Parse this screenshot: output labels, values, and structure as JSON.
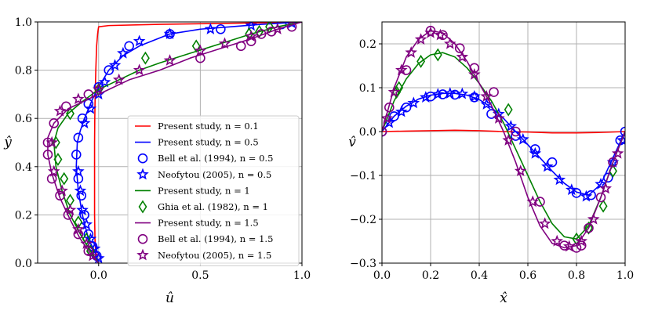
{
  "chart_data": [
    {
      "type": "line",
      "xlabel": "û",
      "ylabel": "ŷ",
      "xlim": [
        -0.3,
        1.0
      ],
      "ylim": [
        0.0,
        1.0
      ],
      "xticks": [
        "0.0",
        "0.5",
        "1.0"
      ],
      "yticks": [
        "0.0",
        "0.2",
        "0.4",
        "0.6",
        "0.8",
        "1.0"
      ],
      "grid": true,
      "legend_position": "lower-right",
      "series": [
        {
          "name": "Present study, n = 0.1",
          "color": "#ff0000",
          "marker": "none",
          "x": [
            0.0,
            -0.004,
            -0.01,
            -0.015,
            -0.018,
            -0.02,
            -0.02,
            -0.02,
            -0.02,
            -0.019,
            -0.017,
            -0.014,
            -0.01,
            -0.005,
            -0.002,
            0.0,
            0.05,
            0.3,
            0.7,
            1.0
          ],
          "y": [
            0.0,
            0.01,
            0.03,
            0.05,
            0.1,
            0.2,
            0.3,
            0.4,
            0.5,
            0.6,
            0.7,
            0.8,
            0.9,
            0.95,
            0.97,
            0.98,
            0.985,
            0.99,
            0.995,
            1.0
          ]
        },
        {
          "name": "Present study, n = 0.5",
          "color": "#0000ff",
          "marker": "none",
          "x": [
            0.0,
            -0.02,
            -0.05,
            -0.08,
            -0.1,
            -0.11,
            -0.105,
            -0.09,
            -0.06,
            -0.03,
            0.0,
            0.05,
            0.12,
            0.2,
            0.35,
            0.5,
            0.65,
            0.8,
            0.9,
            1.0
          ],
          "y": [
            0.0,
            0.05,
            0.1,
            0.2,
            0.3,
            0.4,
            0.5,
            0.55,
            0.62,
            0.68,
            0.73,
            0.8,
            0.86,
            0.9,
            0.95,
            0.97,
            0.98,
            0.99,
            0.995,
            1.0
          ]
        },
        {
          "name": "Bell et al. (1994), n = 0.5",
          "color": "#0000ff",
          "marker": "circle",
          "x": [
            -0.01,
            -0.03,
            -0.05,
            -0.07,
            -0.085,
            -0.1,
            -0.11,
            -0.1,
            -0.08,
            -0.05,
            0.0,
            0.05,
            0.15,
            0.35,
            0.6,
            0.9
          ],
          "y": [
            0.03,
            0.07,
            0.12,
            0.2,
            0.28,
            0.35,
            0.45,
            0.52,
            0.6,
            0.66,
            0.73,
            0.8,
            0.9,
            0.95,
            0.97,
            0.99
          ]
        },
        {
          "name": "Neofytou (2005), n = 0.5",
          "color": "#0000ff",
          "marker": "star",
          "x": [
            0.0,
            -0.02,
            -0.04,
            -0.06,
            -0.08,
            -0.09,
            -0.1,
            -0.07,
            -0.04,
            0.0,
            0.03,
            0.08,
            0.12,
            0.2,
            0.35,
            0.55,
            0.75,
            0.95
          ],
          "y": [
            0.02,
            0.06,
            0.1,
            0.16,
            0.22,
            0.3,
            0.38,
            0.58,
            0.64,
            0.7,
            0.75,
            0.82,
            0.87,
            0.92,
            0.95,
            0.97,
            0.985,
            0.995
          ]
        },
        {
          "name": "Present study, n = 1",
          "color": "#008000",
          "marker": "none",
          "x": [
            0.0,
            -0.04,
            -0.09,
            -0.14,
            -0.18,
            -0.21,
            -0.22,
            -0.2,
            -0.15,
            -0.08,
            0.0,
            0.1,
            0.2,
            0.3,
            0.45,
            0.6,
            0.75,
            0.88,
            1.0
          ],
          "y": [
            0.0,
            0.05,
            0.12,
            0.2,
            0.3,
            0.4,
            0.5,
            0.56,
            0.62,
            0.67,
            0.72,
            0.76,
            0.8,
            0.83,
            0.87,
            0.91,
            0.95,
            0.98,
            1.0
          ]
        },
        {
          "name": "Ghia et al. (1982), n = 1",
          "color": "#008000",
          "marker": "diamond",
          "x": [
            -0.04,
            -0.06,
            -0.1,
            -0.14,
            -0.17,
            -0.2,
            -0.21,
            -0.14,
            0.0,
            0.23,
            0.48,
            0.74,
            0.79,
            0.84
          ],
          "y": [
            0.05,
            0.1,
            0.17,
            0.26,
            0.35,
            0.43,
            0.5,
            0.62,
            0.72,
            0.85,
            0.9,
            0.95,
            0.96,
            0.98
          ]
        },
        {
          "name": "Present study, n = 1.5",
          "color": "#800080",
          "marker": "none",
          "x": [
            0.0,
            -0.04,
            -0.09,
            -0.14,
            -0.19,
            -0.23,
            -0.25,
            -0.25,
            -0.22,
            -0.15,
            -0.05,
            0.05,
            0.15,
            0.3,
            0.45,
            0.6,
            0.75,
            0.88,
            1.0
          ],
          "y": [
            0.0,
            0.04,
            0.1,
            0.18,
            0.27,
            0.37,
            0.45,
            0.52,
            0.58,
            0.64,
            0.68,
            0.72,
            0.76,
            0.8,
            0.85,
            0.89,
            0.93,
            0.97,
            1.0
          ]
        },
        {
          "name": "Bell et al. (1994), n = 1.5",
          "color": "#800080",
          "marker": "circle",
          "x": [
            -0.05,
            -0.1,
            -0.15,
            -0.19,
            -0.23,
            -0.25,
            -0.25,
            -0.22,
            -0.16,
            -0.05,
            0.5,
            0.7,
            0.75,
            0.8,
            0.85,
            0.95
          ],
          "y": [
            0.05,
            0.12,
            0.2,
            0.28,
            0.35,
            0.45,
            0.5,
            0.58,
            0.65,
            0.7,
            0.85,
            0.9,
            0.92,
            0.95,
            0.96,
            0.98
          ]
        },
        {
          "name": "Neofytou (2005), n = 1.5",
          "color": "#800080",
          "marker": "star",
          "x": [
            -0.03,
            -0.06,
            -0.1,
            -0.14,
            -0.18,
            -0.22,
            -0.23,
            -0.19,
            -0.1,
            0.0,
            0.1,
            0.2,
            0.35,
            0.5,
            0.62,
            0.75,
            0.88
          ],
          "y": [
            0.03,
            0.08,
            0.14,
            0.22,
            0.3,
            0.38,
            0.5,
            0.63,
            0.68,
            0.72,
            0.76,
            0.8,
            0.84,
            0.88,
            0.91,
            0.94,
            0.97
          ]
        }
      ]
    },
    {
      "type": "line",
      "xlabel": "x̂",
      "ylabel": "v̂",
      "xlim": [
        0.0,
        1.0
      ],
      "ylim": [
        -0.3,
        0.25
      ],
      "xticks": [
        "0.0",
        "0.2",
        "0.4",
        "0.6",
        "0.8",
        "1.0"
      ],
      "yticks": [
        "−0.3",
        "−0.2",
        "−0.1",
        "0.0",
        "0.1",
        "0.2"
      ],
      "grid": true,
      "series": [
        {
          "name": "Present study, n = 0.1",
          "color": "#ff0000",
          "marker": "none",
          "x": [
            0.0,
            0.1,
            0.2,
            0.3,
            0.4,
            0.5,
            0.6,
            0.7,
            0.8,
            0.9,
            1.0
          ],
          "y": [
            0.0,
            0.001,
            0.002,
            0.003,
            0.002,
            0.0,
            -0.001,
            -0.003,
            -0.003,
            -0.002,
            0.0
          ]
        },
        {
          "name": "Present study, n = 0.5",
          "color": "#0000ff",
          "marker": "none",
          "x": [
            0.0,
            0.05,
            0.1,
            0.15,
            0.2,
            0.25,
            0.3,
            0.35,
            0.4,
            0.45,
            0.5,
            0.55,
            0.6,
            0.65,
            0.7,
            0.75,
            0.8,
            0.85,
            0.9,
            0.95,
            1.0
          ],
          "y": [
            0.0,
            0.035,
            0.058,
            0.074,
            0.083,
            0.087,
            0.087,
            0.083,
            0.073,
            0.055,
            0.03,
            0.0,
            -0.03,
            -0.06,
            -0.09,
            -0.118,
            -0.138,
            -0.145,
            -0.12,
            -0.06,
            0.0
          ]
        },
        {
          "name": "Bell et al. (1994), n = 0.5",
          "color": "#0000ff",
          "marker": "circle",
          "x": [
            0.0,
            0.05,
            0.1,
            0.2,
            0.25,
            0.3,
            0.38,
            0.45,
            0.55,
            0.63,
            0.7,
            0.8,
            0.86,
            0.93,
            0.98,
            1.0
          ],
          "y": [
            0.0,
            0.035,
            0.055,
            0.08,
            0.085,
            0.084,
            0.078,
            0.04,
            -0.01,
            -0.04,
            -0.07,
            -0.14,
            -0.145,
            -0.105,
            -0.02,
            0.0
          ]
        },
        {
          "name": "Neofytou (2005), n = 0.5",
          "color": "#0000ff",
          "marker": "star",
          "x": [
            0.03,
            0.08,
            0.13,
            0.18,
            0.23,
            0.28,
            0.33,
            0.38,
            0.43,
            0.48,
            0.53,
            0.58,
            0.63,
            0.68,
            0.73,
            0.78,
            0.84,
            0.9,
            0.95,
            0.99
          ],
          "y": [
            0.02,
            0.045,
            0.065,
            0.078,
            0.085,
            0.087,
            0.086,
            0.08,
            0.062,
            0.04,
            0.012,
            -0.018,
            -0.05,
            -0.08,
            -0.11,
            -0.133,
            -0.148,
            -0.12,
            -0.07,
            -0.02
          ]
        },
        {
          "name": "Present study, n = 1",
          "color": "#008000",
          "marker": "none",
          "x": [
            0.0,
            0.05,
            0.1,
            0.15,
            0.2,
            0.25,
            0.3,
            0.35,
            0.4,
            0.45,
            0.5,
            0.55,
            0.6,
            0.65,
            0.7,
            0.75,
            0.8,
            0.85,
            0.9,
            0.95,
            1.0
          ],
          "y": [
            0.0,
            0.07,
            0.12,
            0.155,
            0.175,
            0.18,
            0.17,
            0.145,
            0.11,
            0.07,
            0.02,
            -0.04,
            -0.1,
            -0.16,
            -0.21,
            -0.24,
            -0.245,
            -0.215,
            -0.15,
            -0.07,
            0.0
          ]
        },
        {
          "name": "Ghia et al. (1982), n = 1",
          "color": "#008000",
          "marker": "diamond",
          "x": [
            0.06,
            0.07,
            0.16,
            0.23,
            0.52,
            0.8,
            0.85,
            0.91,
            0.95
          ],
          "y": [
            0.09,
            0.1,
            0.16,
            0.175,
            0.05,
            -0.245,
            -0.22,
            -0.17,
            -0.09
          ]
        },
        {
          "name": "Present study, n = 1.5",
          "color": "#800080",
          "marker": "none",
          "x": [
            0.0,
            0.05,
            0.1,
            0.15,
            0.2,
            0.25,
            0.3,
            0.35,
            0.4,
            0.45,
            0.5,
            0.55,
            0.6,
            0.65,
            0.7,
            0.75,
            0.8,
            0.85,
            0.9,
            0.95,
            1.0
          ],
          "y": [
            0.0,
            0.1,
            0.17,
            0.21,
            0.23,
            0.225,
            0.2,
            0.16,
            0.11,
            0.06,
            0.0,
            -0.07,
            -0.15,
            -0.215,
            -0.255,
            -0.265,
            -0.26,
            -0.22,
            -0.15,
            -0.07,
            0.0
          ]
        },
        {
          "name": "Bell et al. (1994), n = 1.5",
          "color": "#800080",
          "marker": "circle",
          "x": [
            0.0,
            0.03,
            0.1,
            0.2,
            0.25,
            0.32,
            0.38,
            0.46,
            0.55,
            0.65,
            0.75,
            0.8,
            0.82,
            0.85,
            0.9,
            0.95
          ],
          "y": [
            0.0,
            0.055,
            0.14,
            0.23,
            0.22,
            0.19,
            0.145,
            0.09,
            0.0,
            -0.16,
            -0.26,
            -0.265,
            -0.26,
            -0.22,
            -0.15,
            -0.07
          ]
        },
        {
          "name": "Neofytou (2005), n = 1.5",
          "color": "#800080",
          "marker": "star",
          "x": [
            0.02,
            0.05,
            0.08,
            0.12,
            0.16,
            0.2,
            0.24,
            0.28,
            0.33,
            0.38,
            0.43,
            0.48,
            0.52,
            0.57,
            0.62,
            0.67,
            0.72,
            0.77,
            0.82,
            0.87,
            0.92,
            0.97
          ],
          "y": [
            0.03,
            0.09,
            0.14,
            0.18,
            0.21,
            0.225,
            0.22,
            0.2,
            0.17,
            0.13,
            0.08,
            0.03,
            -0.02,
            -0.09,
            -0.16,
            -0.21,
            -0.25,
            -0.262,
            -0.25,
            -0.2,
            -0.13,
            -0.05
          ]
        }
      ]
    }
  ]
}
